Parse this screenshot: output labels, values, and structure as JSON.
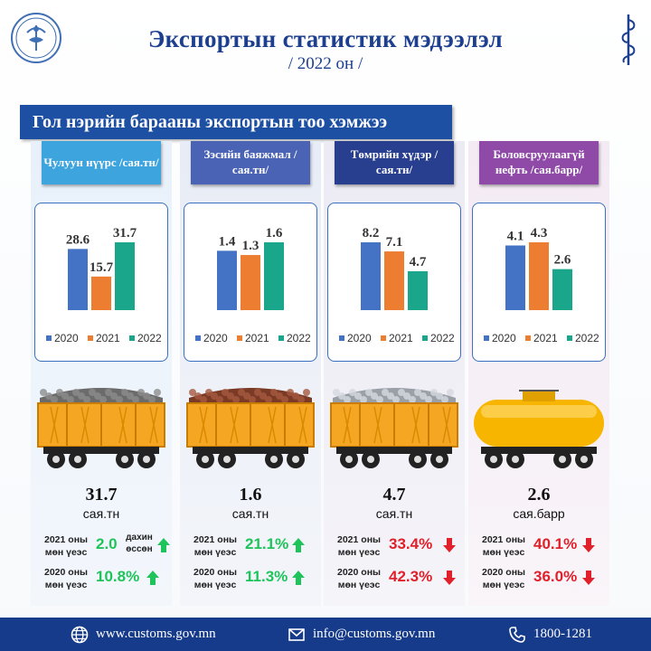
{
  "header": {
    "title": "Экспортын статистик мэдээлэл",
    "subtitle": "/ 2022 он /",
    "logo_text": "ГААЛИЙН ЕРӨНХИЙ ГАЗАР",
    "script_logo_icon": "mongolian-script-icon"
  },
  "banner": {
    "text": "Гол нэрийн барааны экспортын тоо хэмжээ"
  },
  "legend": [
    "2020",
    "2021",
    "2022"
  ],
  "colors": {
    "y2020": "#4472c4",
    "y2021": "#ed7d31",
    "y2022": "#1aa68a",
    "up": "#1ec45a",
    "down": "#e0202a"
  },
  "chart_data": [
    {
      "type": "bar",
      "title": "Чулуун нүүрс /сая.тн/",
      "categories": [
        "2020",
        "2021",
        "2022"
      ],
      "values": [
        28.6,
        15.7,
        31.7
      ]
    },
    {
      "type": "bar",
      "title": "Зэсийн баяжмал /сая.тн/",
      "categories": [
        "2020",
        "2021",
        "2022"
      ],
      "values": [
        1.4,
        1.3,
        1.6
      ]
    },
    {
      "type": "bar",
      "title": "Төмрийн хүдэр /сая.тн/",
      "categories": [
        "2020",
        "2021",
        "2022"
      ],
      "values": [
        8.2,
        7.1,
        4.7
      ]
    },
    {
      "type": "bar",
      "title": "Боловсруулаагүй нефть /сая.барр/",
      "categories": [
        "2020",
        "2021",
        "2022"
      ],
      "values": [
        4.1,
        4.3,
        2.6
      ]
    }
  ],
  "columns": [
    {
      "label": "Чулуун нүүрс /сая.тн/",
      "values": [
        "28.6",
        "15.7",
        "31.7"
      ],
      "total": "31.7",
      "unit": "сая.тн",
      "cmp1": {
        "label": "2021 оны мөн үеэс",
        "pct": "2.0",
        "note": "дахин өссөн",
        "dir": "up"
      },
      "cmp2": {
        "label": "2020 оны мөн үеэс",
        "pct": "10.8%",
        "dir": "up"
      },
      "cargo": "coal"
    },
    {
      "label": "Зэсийн баяжмал /сая.тн/",
      "values": [
        "1.4",
        "1.3",
        "1.6"
      ],
      "total": "1.6",
      "unit": "сая.тн",
      "cmp1": {
        "label": "2021 оны мөн үеэс",
        "pct": "21.1%",
        "dir": "up"
      },
      "cmp2": {
        "label": "2020 оны мөн үеэс",
        "pct": "11.3%",
        "dir": "up"
      },
      "cargo": "copper"
    },
    {
      "label": "Төмрийн хүдэр /сая.тн/",
      "values": [
        "8.2",
        "7.1",
        "4.7"
      ],
      "total": "4.7",
      "unit": "сая.тн",
      "cmp1": {
        "label": "2021 оны мөн үеэс",
        "pct": "33.4%",
        "dir": "down"
      },
      "cmp2": {
        "label": "2020 оны мөн үеэс",
        "pct": "42.3%",
        "dir": "down"
      },
      "cargo": "iron"
    },
    {
      "label": "Боловсруулаагүй нефть /сая.барр/",
      "values": [
        "4.1",
        "4.3",
        "2.6"
      ],
      "total": "2.6",
      "unit": "сая.барр",
      "cmp1": {
        "label": "2021 оны мөн үеэс",
        "pct": "40.1%",
        "dir": "down"
      },
      "cmp2": {
        "label": "2020 оны мөн үеэс",
        "pct": "36.0%",
        "dir": "down"
      },
      "cargo": "oil"
    }
  ],
  "footer": {
    "website": "www.customs.gov.mn",
    "email": "info@customs.gov.mn",
    "phone": "1800-1281"
  }
}
